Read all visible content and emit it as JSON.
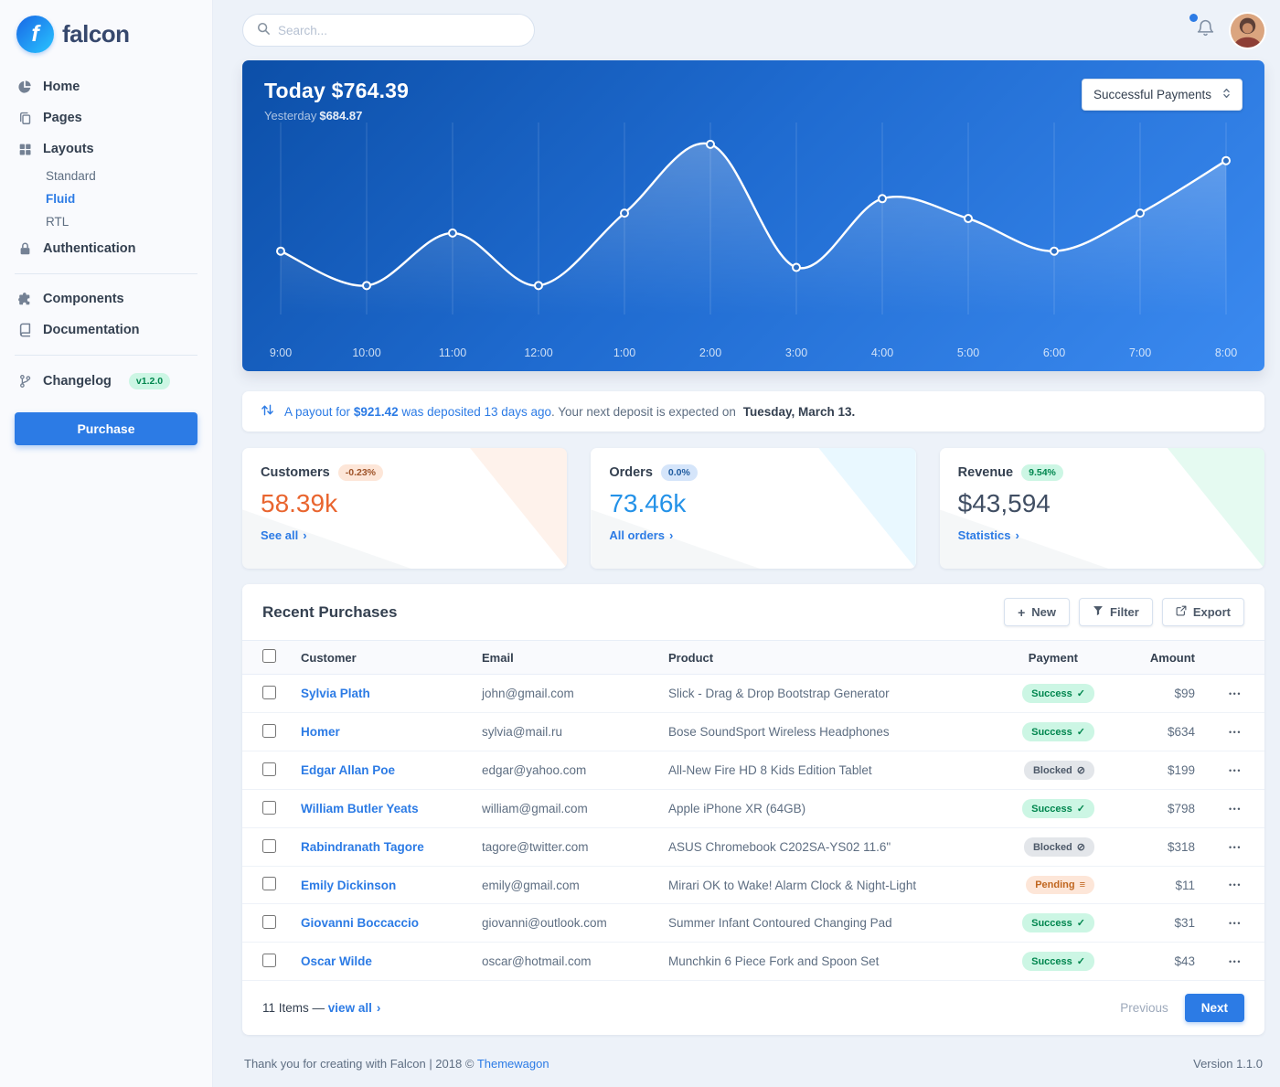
{
  "brand": {
    "name": "falcon"
  },
  "topbar": {
    "search_placeholder": "Search..."
  },
  "sidebar": {
    "home": "Home",
    "pages": "Pages",
    "layouts": "Layouts",
    "layouts_children": [
      "Standard",
      "Fluid",
      "RTL"
    ],
    "active_layout": "Fluid",
    "authentication": "Authentication",
    "components": "Components",
    "documentation": "Documentation",
    "changelog": "Changelog",
    "changelog_badge": "v1.2.0",
    "purchase": "Purchase"
  },
  "chart_card": {
    "title": "Today $764.39",
    "yesterday_label": "Yesterday",
    "yesterday_value": "$684.87",
    "dropdown_value": "Successful Payments"
  },
  "chart_data": {
    "type": "line",
    "title": "Today $764.39",
    "subtitle": "Yesterday $684.87",
    "x": [
      "9:00",
      "10:00",
      "11:00",
      "12:00",
      "1:00",
      "2:00",
      "3:00",
      "4:00",
      "5:00",
      "6:00",
      "7:00",
      "8:00"
    ],
    "series": [
      {
        "name": "Successful Payments",
        "values": [
          35,
          16,
          45,
          16,
          56,
          94,
          26,
          64,
          53,
          35,
          56,
          85
        ]
      }
    ],
    "ylim": [
      0,
      100
    ],
    "grid": "vertical-only",
    "legend": "none",
    "line_color": "#ffffff",
    "background": "blue-gradient"
  },
  "notice": {
    "link_text": "A payout for",
    "amount": "$921.42",
    "link_text2": "was deposited 13 days ago",
    "rest": ". Your next deposit is expected on",
    "date": "Tuesday, March 13."
  },
  "stats": [
    {
      "label": "Customers",
      "badge": "-0.23%",
      "value": "58.39k",
      "link": "See all"
    },
    {
      "label": "Orders",
      "badge": "0.0%",
      "value": "73.46k",
      "link": "All orders"
    },
    {
      "label": "Revenue",
      "badge": "9.54%",
      "value": "$43,594",
      "link": "Statistics"
    }
  ],
  "purchases": {
    "title": "Recent Purchases",
    "actions": [
      {
        "label": "New"
      },
      {
        "label": "Filter"
      },
      {
        "label": "Export"
      }
    ],
    "table": {
      "headers": [
        "Customer",
        "Email",
        "Product",
        "Payment",
        "Amount"
      ],
      "rows": [
        {
          "customer": "Sylvia Plath",
          "email": "john@gmail.com",
          "product": "Slick - Drag & Drop Bootstrap Generator",
          "payment": "Success",
          "amount": "$99"
        },
        {
          "customer": "Homer",
          "email": "sylvia@mail.ru",
          "product": "Bose SoundSport Wireless Headphones",
          "payment": "Success",
          "amount": "$634"
        },
        {
          "customer": "Edgar Allan Poe",
          "email": "edgar@yahoo.com",
          "product": "All-New Fire HD 8 Kids Edition Tablet",
          "payment": "Blocked",
          "amount": "$199"
        },
        {
          "customer": "William Butler Yeats",
          "email": "william@gmail.com",
          "product": "Apple iPhone XR (64GB)",
          "payment": "Success",
          "amount": "$798"
        },
        {
          "customer": "Rabindranath Tagore",
          "email": "tagore@twitter.com",
          "product": "ASUS Chromebook C202SA-YS02 11.6\"",
          "payment": "Blocked",
          "amount": "$318"
        },
        {
          "customer": "Emily Dickinson",
          "email": "emily@gmail.com",
          "product": "Mirari OK to Wake! Alarm Clock & Night-Light",
          "payment": "Pending",
          "amount": "$11"
        },
        {
          "customer": "Giovanni Boccaccio",
          "email": "giovanni@outlook.com",
          "product": "Summer Infant Contoured Changing Pad",
          "payment": "Success",
          "amount": "$31"
        },
        {
          "customer": "Oscar Wilde",
          "email": "oscar@hotmail.com",
          "product": "Munchkin 6 Piece Fork and Spoon Set",
          "payment": "Success",
          "amount": "$43"
        }
      ]
    },
    "status_styles": {
      "Success": {
        "class": "success",
        "icon": "✓"
      },
      "Blocked": {
        "class": "blocked",
        "icon": "⊘"
      },
      "Pending": {
        "class": "pending",
        "icon": "≡"
      }
    },
    "footer": {
      "items_text": "11 Items —",
      "view_all": "view all",
      "previous": "Previous",
      "next": "Next"
    }
  },
  "icons": {
    "plus": "+",
    "chevron-right": "›",
    "ellipsis": "•••"
  },
  "page_footer": {
    "text": "Thank you for creating with Falcon | 2018 ©",
    "link": "Themewagon",
    "version": "Version 1.1.0"
  },
  "colors": {
    "primary": "#2c7be5",
    "success": "#00d27a",
    "warning": "#f5803e",
    "info": "#27bcfd"
  }
}
